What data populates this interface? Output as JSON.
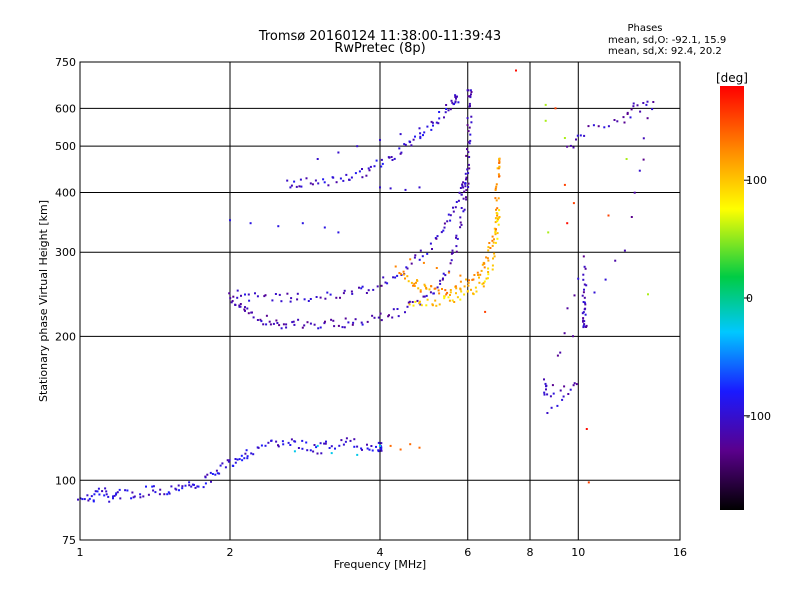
{
  "chart_data": {
    "type": "scatter",
    "title": "Tromsø 20160124 11:38:00-11:39:43",
    "subtitle": "RwPretec (8p)",
    "xlabel": "Frequency [MHz]",
    "ylabel": "Stationary phase Virtual Height [km]",
    "x_scale": "log",
    "y_scale": "log",
    "xlim": [
      1,
      16
    ],
    "ylim": [
      75,
      750
    ],
    "x_ticks": [
      1,
      2,
      4,
      6,
      8,
      10,
      16
    ],
    "y_ticks": [
      75,
      100,
      200,
      300,
      400,
      500,
      600,
      750
    ],
    "grid": true,
    "stats": {
      "heading": "Phases",
      "line_o": "mean, sd,O: -92.1, 15.9",
      "line_x": "mean, sd,X:  92.4, 20.2"
    },
    "colorbar": {
      "label": "[deg]",
      "range": [
        -180,
        180
      ],
      "ticks": [
        100,
        0,
        -100
      ],
      "colors": [
        "#000000",
        "#5a008c",
        "#1a1aff",
        "#00c8ff",
        "#00cc44",
        "#ffff00",
        "#ff8800",
        "#ff0000"
      ]
    },
    "traces": [
      {
        "name": "",
        "phase": -95,
        "points": [
          [
            1.0,
            93
          ],
          [
            1.05,
            91
          ],
          [
            1.1,
            95
          ],
          [
            1.15,
            92
          ],
          [
            1.2,
            94
          ],
          [
            1.3,
            93
          ],
          [
            1.4,
            96
          ],
          [
            1.5,
            95
          ],
          [
            1.6,
            98
          ],
          [
            1.7,
            97
          ],
          [
            1.8,
            100
          ],
          [
            1.9,
            105
          ],
          [
            2.0,
            108
          ],
          [
            2.1,
            112
          ],
          [
            2.2,
            115
          ],
          [
            2.4,
            118
          ],
          [
            2.6,
            120
          ],
          [
            2.8,
            118
          ],
          [
            3.0,
            116
          ],
          [
            3.2,
            119
          ],
          [
            3.5,
            120
          ],
          [
            3.8,
            118
          ],
          [
            4.0,
            117
          ]
        ]
      },
      {
        "name": "",
        "phase": -110,
        "points": [
          [
            2.0,
            240
          ],
          [
            2.1,
            230
          ],
          [
            2.2,
            222
          ],
          [
            2.35,
            216
          ],
          [
            2.5,
            213
          ],
          [
            2.7,
            212
          ],
          [
            3.0,
            212
          ],
          [
            3.3,
            213
          ],
          [
            3.6,
            215
          ],
          [
            4.0,
            219
          ],
          [
            4.4,
            225
          ],
          [
            4.8,
            236
          ],
          [
            5.2,
            254
          ],
          [
            5.5,
            278
          ],
          [
            5.7,
            310
          ],
          [
            5.85,
            350
          ],
          [
            5.95,
            400
          ],
          [
            6.0,
            450
          ],
          [
            6.02,
            500
          ],
          [
            6.05,
            560
          ],
          [
            6.05,
            640
          ]
        ]
      },
      {
        "name": "",
        "phase": -105,
        "points": [
          [
            2.0,
            248
          ],
          [
            2.2,
            242
          ],
          [
            2.5,
            240
          ],
          [
            2.8,
            241
          ],
          [
            3.2,
            243
          ],
          [
            3.6,
            248
          ],
          [
            4.0,
            258
          ],
          [
            4.4,
            272
          ],
          [
            4.8,
            292
          ],
          [
            5.2,
            320
          ],
          [
            5.5,
            350
          ],
          [
            5.75,
            385
          ],
          [
            5.9,
            420
          ]
        ]
      },
      {
        "name": "",
        "phase": -100,
        "points": [
          [
            2.6,
            420
          ],
          [
            2.8,
            418
          ],
          [
            3.1,
            420
          ],
          [
            3.4,
            428
          ],
          [
            3.7,
            440
          ],
          [
            4.0,
            458
          ],
          [
            4.3,
            480
          ],
          [
            4.6,
            505
          ],
          [
            4.9,
            535
          ],
          [
            5.2,
            570
          ],
          [
            5.5,
            600
          ],
          [
            5.7,
            625
          ]
        ]
      },
      {
        "name": "",
        "phase": -100,
        "points": [
          [
            3.0,
            470
          ],
          [
            3.3,
            485
          ],
          [
            3.6,
            500
          ],
          [
            4.0,
            515
          ],
          [
            4.4,
            530
          ],
          [
            4.8,
            545
          ],
          [
            5.2,
            560
          ]
        ]
      },
      {
        "name": "",
        "phase": -90,
        "points": [
          [
            2.0,
            350
          ],
          [
            2.2,
            345
          ],
          [
            2.5,
            340
          ],
          [
            2.8,
            345
          ],
          [
            3.1,
            338
          ],
          [
            3.3,
            330
          ]
        ]
      },
      {
        "name": "",
        "phase": -100,
        "points": [
          [
            4.0,
            410
          ],
          [
            4.2,
            408
          ],
          [
            4.5,
            405
          ],
          [
            4.8,
            410
          ]
        ]
      },
      {
        "name": "",
        "phase": 120,
        "points": [
          [
            4.4,
            270
          ],
          [
            4.6,
            262
          ],
          [
            4.8,
            255
          ],
          [
            5.0,
            250
          ],
          [
            5.3,
            246
          ],
          [
            5.6,
            250
          ],
          [
            5.9,
            258
          ],
          [
            6.2,
            265
          ],
          [
            6.45,
            280
          ],
          [
            6.6,
            300
          ],
          [
            6.75,
            330
          ],
          [
            6.85,
            370
          ],
          [
            6.9,
            420
          ],
          [
            6.9,
            460
          ]
        ]
      },
      {
        "name": "",
        "phase": 100,
        "points": [
          [
            4.6,
            235
          ],
          [
            5.0,
            235
          ],
          [
            5.4,
            238
          ],
          [
            5.8,
            242
          ],
          [
            6.2,
            250
          ],
          [
            6.5,
            262
          ],
          [
            6.7,
            285
          ],
          [
            6.85,
            320
          ],
          [
            6.9,
            360
          ]
        ]
      },
      {
        "name": "",
        "phase": 130,
        "points": [
          [
            4.3,
            280
          ],
          [
            4.6,
            290
          ],
          [
            4.9,
            285
          ],
          [
            5.2,
            278
          ],
          [
            5.5,
            272
          ],
          [
            5.8,
            268
          ]
        ]
      },
      {
        "name": "",
        "phase": 140,
        "points": [
          [
            4.2,
            118
          ],
          [
            4.4,
            116
          ],
          [
            4.6,
            119
          ],
          [
            4.8,
            117
          ]
        ]
      },
      {
        "name": "",
        "phase": -20,
        "points": [
          [
            2.7,
            115
          ],
          [
            3.0,
            118
          ],
          [
            3.2,
            114
          ],
          [
            3.6,
            113
          ],
          [
            4.0,
            118
          ]
        ]
      },
      {
        "name": "",
        "phase": 60,
        "points": [
          [
            8.6,
            610
          ],
          [
            8.6,
            565
          ],
          [
            9.4,
            520
          ],
          [
            8.7,
            330
          ],
          [
            12.5,
            470
          ],
          [
            13.8,
            245
          ]
        ]
      },
      {
        "name": "",
        "phase": 155,
        "points": [
          [
            9.0,
            600
          ],
          [
            9.4,
            415
          ],
          [
            9.8,
            380
          ],
          [
            11.5,
            358
          ],
          [
            6.5,
            225
          ],
          [
            10.5,
            99
          ]
        ]
      },
      {
        "name": "",
        "phase": -110,
        "points": [
          [
            9.5,
            488
          ],
          [
            10.4,
            545
          ],
          [
            12.3,
            560
          ],
          [
            13.0,
            600
          ],
          [
            14.1,
            610
          ],
          [
            12.5,
            305
          ],
          [
            8.6,
            160
          ],
          [
            8.6,
            152
          ],
          [
            10.0,
            160
          ],
          [
            8.6,
            136
          ],
          [
            10.3,
            290
          ],
          [
            10.3,
            245
          ],
          [
            10.3,
            230
          ],
          [
            10.3,
            210
          ]
        ]
      },
      {
        "name": "",
        "phase": 175,
        "points": [
          [
            7.5,
            720
          ],
          [
            9.5,
            345
          ],
          [
            10.4,
            128
          ]
        ]
      }
    ]
  }
}
